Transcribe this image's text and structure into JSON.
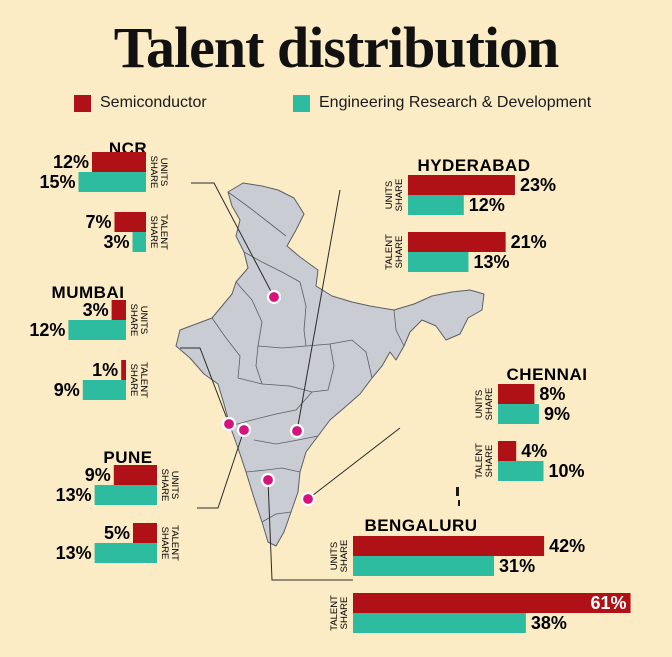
{
  "title": "Talent distribution",
  "legend": {
    "semiconductor": "Semiconductor",
    "erd": "Engineering Research & Development"
  },
  "colors": {
    "semiconductor": "#b01116",
    "erd": "#2ebca0",
    "background": "#fbecc6",
    "map_fill": "#c9ccd2",
    "marker": "#d6127e"
  },
  "chart_data": {
    "type": "bar",
    "title": "Talent distribution",
    "series": [
      {
        "name": "Semiconductor"
      },
      {
        "name": "Engineering Research & Development"
      }
    ],
    "metrics": [
      {
        "line1": "UNITS",
        "line2": "SHARE"
      },
      {
        "line1": "TALENT",
        "line2": "SHARE"
      }
    ],
    "cities": [
      {
        "name": "NCR",
        "units": {
          "semi": 12,
          "erd": 15
        },
        "talent": {
          "semi": 7,
          "erd": 3
        }
      },
      {
        "name": "MUMBAI",
        "units": {
          "semi": 3,
          "erd": 12
        },
        "talent": {
          "semi": 1,
          "erd": 9
        }
      },
      {
        "name": "PUNE",
        "units": {
          "semi": 9,
          "erd": 13
        },
        "talent": {
          "semi": 5,
          "erd": 13
        }
      },
      {
        "name": "HYDERABAD",
        "units": {
          "semi": 23,
          "erd": 12
        },
        "talent": {
          "semi": 21,
          "erd": 13
        }
      },
      {
        "name": "CHENNAI",
        "units": {
          "semi": 8,
          "erd": 9
        },
        "talent": {
          "semi": 4,
          "erd": 10
        }
      },
      {
        "name": "BENGALURU",
        "units": {
          "semi": 42,
          "erd": 31
        },
        "talent": {
          "semi": 61,
          "erd": 38
        }
      }
    ]
  }
}
